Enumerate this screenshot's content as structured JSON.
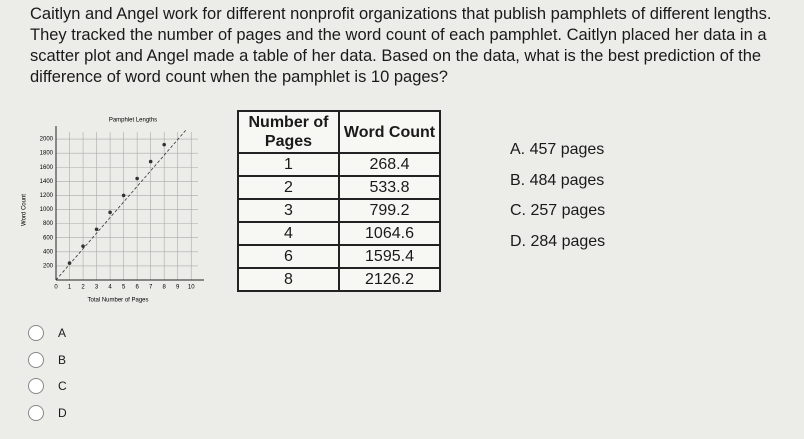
{
  "question": "Caitlyn and Angel work for different nonprofit organizations that publish pamphlets of different lengths. They tracked the number of pages and the word count of each pamphlet. Caitlyn placed her data in a scatter plot and Angel made a table of her data. Based on the data, what is the best prediction of the difference of word count when the pamphlet is 10 pages?",
  "chart": {
    "type": "scatter",
    "title": "Pamphlet Lengths",
    "x_label": "Total Number of Pages",
    "y_label": "Word Count",
    "x": [
      1,
      2,
      3,
      4,
      5,
      6,
      7,
      8
    ],
    "values": [
      240,
      480,
      720,
      960,
      1200,
      1440,
      1680,
      1920
    ],
    "xlim": [
      0,
      10.5
    ],
    "ylim": [
      0,
      2100
    ],
    "xticks": [
      0,
      1,
      2,
      3,
      4,
      5,
      6,
      7,
      8,
      9,
      10
    ],
    "yticks": [
      200,
      400,
      600,
      800,
      1000,
      1200,
      1400,
      1600,
      1800,
      2000
    ],
    "grid": true,
    "color": "#333333"
  },
  "table": {
    "header": [
      "Number of Pages",
      "Word Count"
    ],
    "rows": [
      [
        "1",
        "268.4"
      ],
      [
        "2",
        "533.8"
      ],
      [
        "3",
        "799.2"
      ],
      [
        "4",
        "1064.6"
      ],
      [
        "6",
        "1595.4"
      ],
      [
        "8",
        "2126.2"
      ]
    ]
  },
  "options": [
    "A.  457 pages",
    "B.  484 pages",
    "C.  257 pages",
    "D.  284 pages"
  ],
  "choices": [
    "A",
    "B",
    "C",
    "D"
  ]
}
